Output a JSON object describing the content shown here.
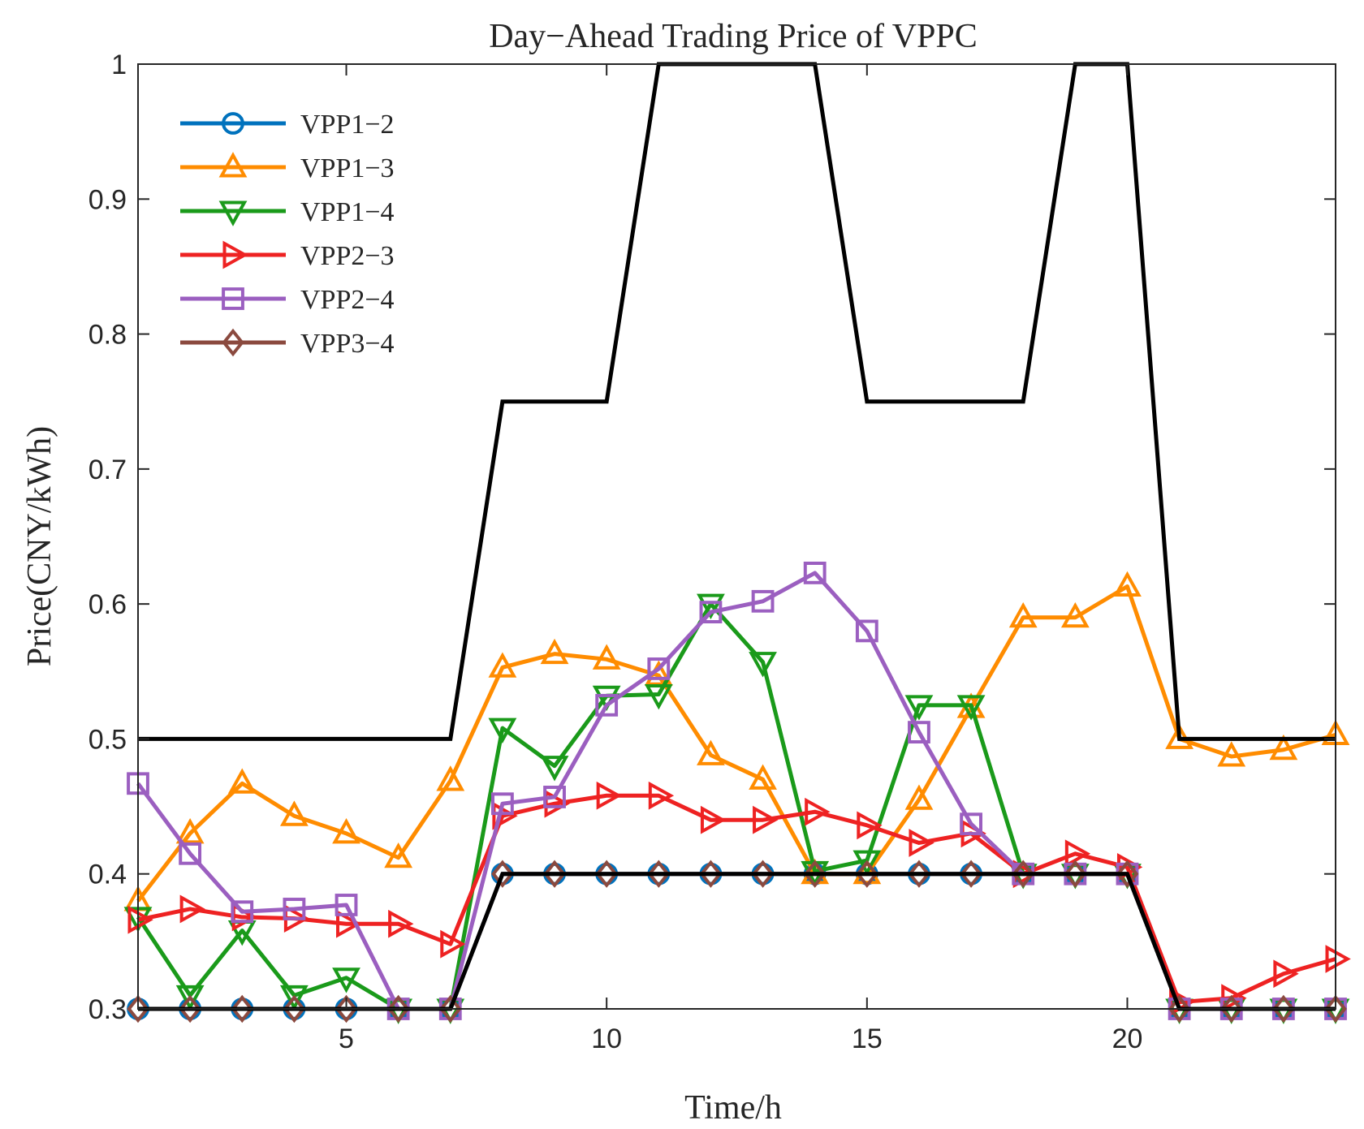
{
  "chart_data": {
    "type": "line",
    "title": "Day−Ahead Trading Price of VPPC",
    "xlabel": "Time/h",
    "ylabel": "Price(CNY/kWh)",
    "xlim": [
      1,
      24
    ],
    "ylim": [
      0.3,
      1
    ],
    "xticks": [
      5,
      10,
      15,
      20
    ],
    "yticks": [
      0.3,
      0.4,
      0.5,
      0.6,
      0.7,
      0.8,
      0.9,
      1
    ],
    "ytick_labels": [
      "0.3",
      "0.4",
      "0.5",
      "0.6",
      "0.7",
      "0.8",
      "0.9",
      "1"
    ],
    "legend_position": "top-left",
    "x": [
      1,
      2,
      3,
      4,
      5,
      6,
      7,
      8,
      9,
      10,
      11,
      12,
      13,
      14,
      15,
      16,
      17,
      18,
      19,
      20,
      21,
      22,
      23,
      24
    ],
    "series": [
      {
        "name": "VPP1−2",
        "color": "#0072BD",
        "marker": "circle",
        "values": [
          0.3,
          0.3,
          0.3,
          0.3,
          0.3,
          0.3,
          0.3,
          0.4,
          0.4,
          0.4,
          0.4,
          0.4,
          0.4,
          0.4,
          0.4,
          0.4,
          0.4,
          0.4,
          0.4,
          0.4,
          0.3,
          0.3,
          0.3,
          0.3
        ]
      },
      {
        "name": "VPP1−3",
        "color": "#FF8C00",
        "marker": "triangle-up",
        "values": [
          0.38,
          0.43,
          0.467,
          0.443,
          0.43,
          0.412,
          0.469,
          0.553,
          0.563,
          0.559,
          0.547,
          0.488,
          0.47,
          0.4,
          0.4,
          0.455,
          0.523,
          0.59,
          0.59,
          0.613,
          0.5,
          0.487,
          0.492,
          0.503
        ]
      },
      {
        "name": "VPP1−4",
        "color": "#1A9A1A",
        "marker": "triangle-down",
        "values": [
          0.368,
          0.31,
          0.358,
          0.31,
          0.323,
          0.3,
          0.3,
          0.508,
          0.48,
          0.532,
          0.533,
          0.6,
          0.557,
          0.402,
          0.41,
          0.525,
          0.525,
          0.4,
          0.4,
          0.4,
          0.3,
          0.3,
          0.3,
          0.3
        ]
      },
      {
        "name": "VPP2−3",
        "color": "#EE2222",
        "marker": "triangle-right",
        "values": [
          0.366,
          0.374,
          0.368,
          0.367,
          0.363,
          0.363,
          0.348,
          0.443,
          0.452,
          0.458,
          0.458,
          0.44,
          0.44,
          0.446,
          0.436,
          0.423,
          0.43,
          0.4,
          0.415,
          0.405,
          0.305,
          0.308,
          0.326,
          0.337
        ]
      },
      {
        "name": "VPP2−4",
        "color": "#9B5FC0",
        "marker": "square",
        "values": [
          0.467,
          0.415,
          0.372,
          0.374,
          0.377,
          0.3,
          0.3,
          0.452,
          0.457,
          0.525,
          0.552,
          0.594,
          0.602,
          0.623,
          0.58,
          0.505,
          0.437,
          0.4,
          0.4,
          0.4,
          0.3,
          0.3,
          0.3,
          0.3
        ]
      },
      {
        "name": "VPP3−4",
        "color": "#8B4A3F",
        "marker": "diamond",
        "values": [
          0.3,
          0.3,
          0.3,
          0.3,
          0.3,
          0.3,
          0.3,
          0.4,
          0.4,
          0.4,
          0.4,
          0.4,
          0.4,
          0.4,
          0.4,
          0.4,
          0.4,
          0.4,
          0.4,
          0.4,
          0.3,
          0.3,
          0.3,
          0.3
        ]
      }
    ],
    "reference_lines": [
      {
        "name": "upper-bound",
        "color": "#000000",
        "values": [
          0.5,
          0.5,
          0.5,
          0.5,
          0.5,
          0.5,
          0.5,
          0.75,
          0.75,
          0.75,
          1,
          1,
          1,
          1,
          0.75,
          0.75,
          0.75,
          0.75,
          1,
          1,
          0.5,
          0.5,
          0.5,
          0.5
        ]
      },
      {
        "name": "lower-bound",
        "color": "#000000",
        "values": [
          0.3,
          0.3,
          0.3,
          0.3,
          0.3,
          0.3,
          0.3,
          0.4,
          0.4,
          0.4,
          0.4,
          0.4,
          0.4,
          0.4,
          0.4,
          0.4,
          0.4,
          0.4,
          0.4,
          0.4,
          0.3,
          0.3,
          0.3,
          0.3
        ]
      }
    ]
  }
}
